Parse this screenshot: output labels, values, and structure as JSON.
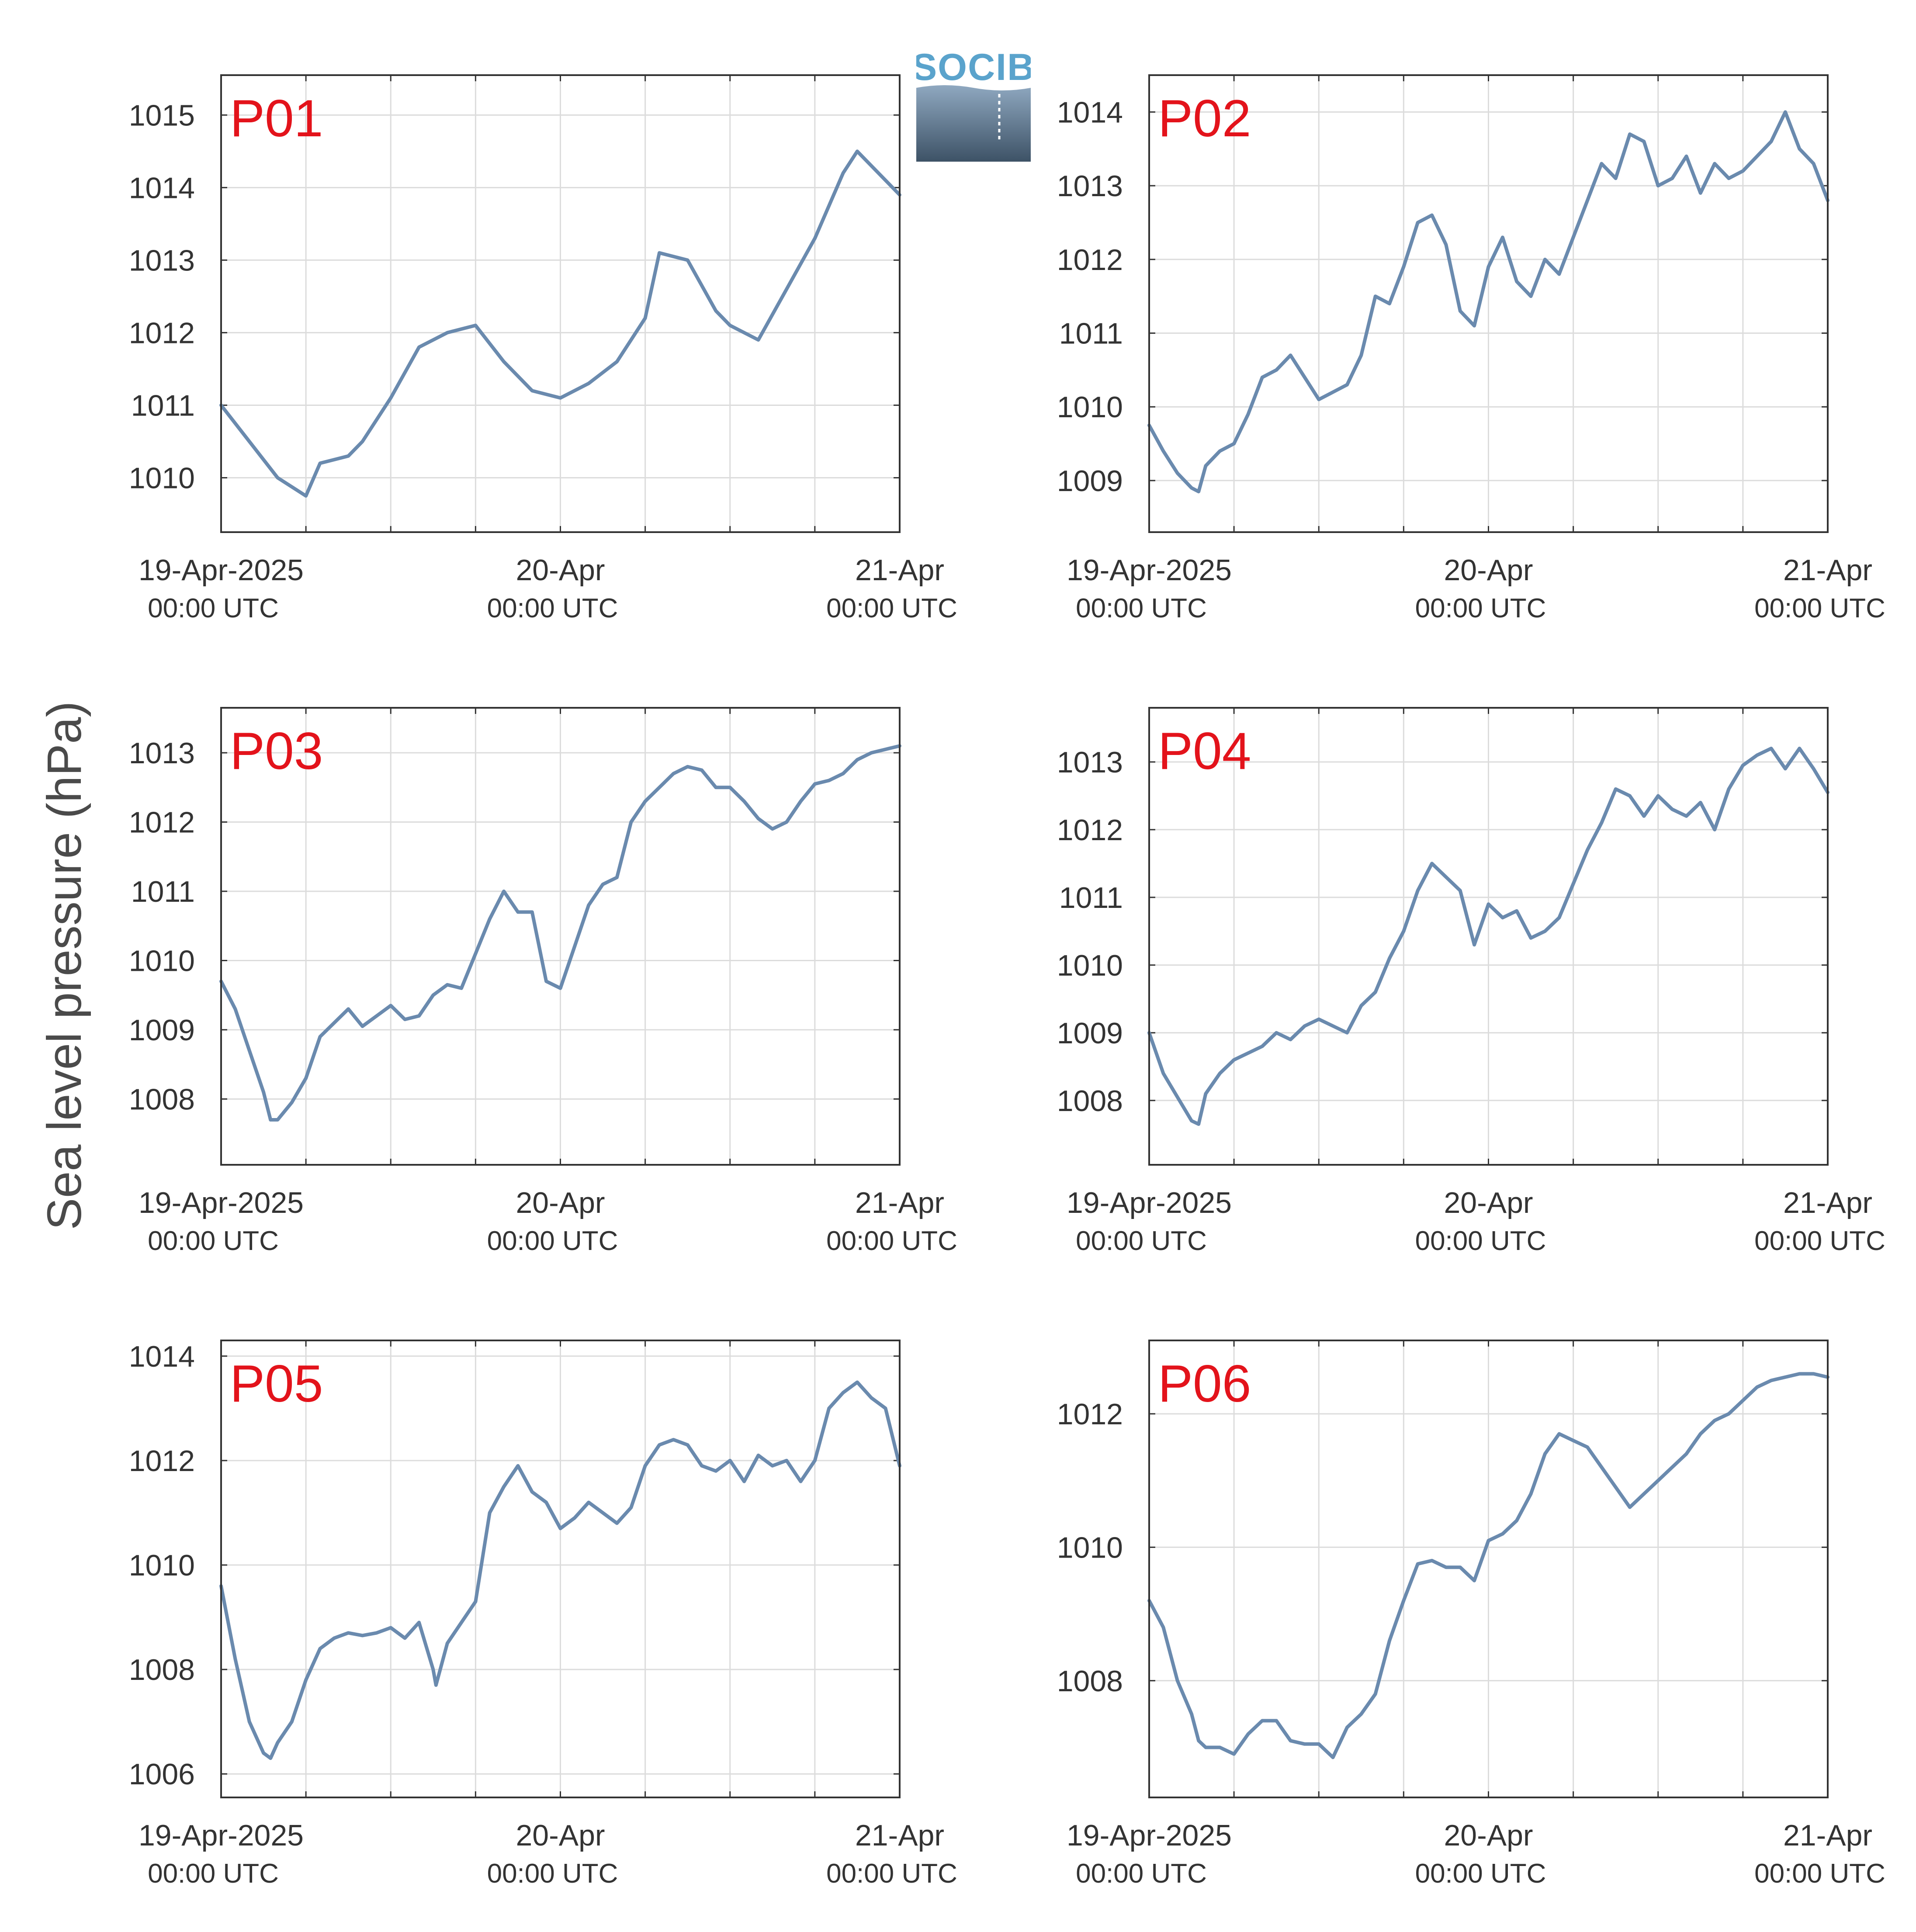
{
  "figure": {
    "ylabel": "Sea level pressure (hPa)",
    "logo_text": "SOCIB",
    "line_color": "#6a8aae",
    "label_color": "#e3131b",
    "grid_color": "#dcdcdc"
  },
  "chart_data": [
    {
      "type": "line",
      "panel": "P01",
      "ylim": [
        1009.25,
        1015.55
      ],
      "yticks": [
        1010,
        1011,
        1012,
        1013,
        1014,
        1015
      ],
      "xlim": [
        "2025-04-19 00:00",
        "2025-04-21 00:00"
      ],
      "xticks": [
        {
          "label": "19-Apr-2025",
          "sub": "00:00 UTC"
        },
        {
          "label": "20-Apr",
          "sub": "00:00 UTC"
        },
        {
          "label": "21-Apr",
          "sub": "00:00 UTC"
        }
      ],
      "grid": true,
      "series": [
        {
          "hours": [
            0,
            2,
            4,
            6,
            7,
            9,
            10,
            12,
            14,
            16,
            18,
            20,
            22,
            24,
            26,
            28,
            30,
            31,
            33,
            35,
            36,
            38,
            40,
            42,
            44,
            45,
            47,
            48
          ],
          "values": [
            1011.0,
            1010.5,
            1010.0,
            1009.75,
            1010.2,
            1010.3,
            1010.5,
            1011.1,
            1011.8,
            1012.0,
            1012.1,
            1011.6,
            1011.2,
            1011.1,
            1011.3,
            1011.6,
            1012.2,
            1013.1,
            1013.0,
            1012.3,
            1012.1,
            1011.9,
            1012.6,
            1013.3,
            1014.2,
            1014.5,
            1014.1,
            1013.9
          ]
        }
      ]
    },
    {
      "type": "line",
      "panel": "P02",
      "ylim": [
        1008.3,
        1014.5
      ],
      "yticks": [
        1009,
        1010,
        1011,
        1012,
        1013,
        1014
      ],
      "xlim": [
        "2025-04-19 00:00",
        "2025-04-21 00:00"
      ],
      "xticks": [
        {
          "label": "19-Apr-2025",
          "sub": "00:00 UTC"
        },
        {
          "label": "20-Apr",
          "sub": "00:00 UTC"
        },
        {
          "label": "21-Apr",
          "sub": "00:00 UTC"
        }
      ],
      "grid": true,
      "series": [
        {
          "hours": [
            0,
            1,
            2,
            3,
            3.5,
            4,
            5,
            6,
            7,
            8,
            9,
            10,
            11,
            12,
            13,
            14,
            15,
            16,
            17,
            18,
            19,
            20,
            21,
            22,
            23,
            24,
            25,
            26,
            27,
            28,
            29,
            30,
            31,
            32,
            33,
            34,
            35,
            36,
            37,
            38,
            39,
            40,
            41,
            42,
            43,
            44,
            45,
            46,
            47,
            48
          ],
          "values": [
            1009.75,
            1009.4,
            1009.1,
            1008.9,
            1008.85,
            1009.2,
            1009.4,
            1009.5,
            1009.9,
            1010.4,
            1010.5,
            1010.7,
            1010.4,
            1010.1,
            1010.2,
            1010.3,
            1010.7,
            1011.5,
            1011.4,
            1011.9,
            1012.5,
            1012.6,
            1012.2,
            1011.3,
            1011.1,
            1011.9,
            1012.3,
            1011.7,
            1011.5,
            1012.0,
            1011.8,
            1012.3,
            1012.8,
            1013.3,
            1013.1,
            1013.7,
            1013.6,
            1013.0,
            1013.1,
            1013.4,
            1012.9,
            1013.3,
            1013.1,
            1013.2,
            1013.4,
            1013.6,
            1014.0,
            1013.5,
            1013.3,
            1012.8
          ]
        }
      ]
    },
    {
      "type": "line",
      "panel": "P03",
      "ylim": [
        1007.05,
        1013.65
      ],
      "yticks": [
        1008,
        1009,
        1010,
        1011,
        1012,
        1013
      ],
      "xlim": [
        "2025-04-19 00:00",
        "2025-04-21 00:00"
      ],
      "xticks": [
        {
          "label": "19-Apr-2025",
          "sub": "00:00 UTC"
        },
        {
          "label": "20-Apr",
          "sub": "00:00 UTC"
        },
        {
          "label": "21-Apr",
          "sub": "00:00 UTC"
        }
      ],
      "grid": true,
      "series": [
        {
          "hours": [
            0,
            1,
            2,
            3,
            3.5,
            4,
            5,
            6,
            7,
            8,
            9,
            10,
            11,
            12,
            13,
            14,
            15,
            16,
            17,
            18,
            19,
            20,
            21,
            22,
            23,
            24,
            25,
            26,
            27,
            28,
            29,
            30,
            31,
            32,
            33,
            34,
            35,
            36,
            37,
            38,
            39,
            40,
            41,
            42,
            43,
            44,
            45,
            46,
            47,
            48
          ],
          "values": [
            1009.7,
            1009.3,
            1008.7,
            1008.1,
            1007.7,
            1007.7,
            1007.95,
            1008.3,
            1008.9,
            1009.1,
            1009.3,
            1009.05,
            1009.2,
            1009.35,
            1009.15,
            1009.2,
            1009.5,
            1009.65,
            1009.6,
            1010.1,
            1010.6,
            1011.0,
            1010.7,
            1010.7,
            1009.7,
            1009.6,
            1010.2,
            1010.8,
            1011.1,
            1011.2,
            1012.0,
            1012.3,
            1012.5,
            1012.7,
            1012.8,
            1012.75,
            1012.5,
            1012.5,
            1012.3,
            1012.05,
            1011.9,
            1012.0,
            1012.3,
            1012.55,
            1012.6,
            1012.7,
            1012.9,
            1013.0,
            1013.05,
            1013.1
          ]
        }
      ]
    },
    {
      "type": "line",
      "panel": "P04",
      "ylim": [
        1007.05,
        1013.8
      ],
      "yticks": [
        1008,
        1009,
        1010,
        1011,
        1012,
        1013
      ],
      "xlim": [
        "2025-04-19 00:00",
        "2025-04-21 00:00"
      ],
      "xticks": [
        {
          "label": "19-Apr-2025",
          "sub": "00:00 UTC"
        },
        {
          "label": "20-Apr",
          "sub": "00:00 UTC"
        },
        {
          "label": "21-Apr",
          "sub": "00:00 UTC"
        }
      ],
      "grid": true,
      "series": [
        {
          "hours": [
            0,
            1,
            2,
            3,
            3.5,
            4,
            5,
            6,
            7,
            8,
            9,
            10,
            11,
            12,
            13,
            14,
            15,
            16,
            17,
            18,
            19,
            20,
            21,
            22,
            23,
            24,
            25,
            26,
            27,
            28,
            29,
            30,
            31,
            32,
            33,
            34,
            35,
            36,
            37,
            38,
            39,
            40,
            41,
            42,
            43,
            44,
            45,
            46,
            47,
            48
          ],
          "values": [
            1009.0,
            1008.4,
            1008.05,
            1007.7,
            1007.65,
            1008.1,
            1008.4,
            1008.6,
            1008.7,
            1008.8,
            1009.0,
            1008.9,
            1009.1,
            1009.2,
            1009.1,
            1009.0,
            1009.4,
            1009.6,
            1010.1,
            1010.5,
            1011.1,
            1011.5,
            1011.3,
            1011.1,
            1010.3,
            1010.9,
            1010.7,
            1010.8,
            1010.4,
            1010.5,
            1010.7,
            1011.2,
            1011.7,
            1012.1,
            1012.6,
            1012.5,
            1012.2,
            1012.5,
            1012.3,
            1012.2,
            1012.4,
            1012.0,
            1012.6,
            1012.95,
            1013.1,
            1013.2,
            1012.9,
            1013.2,
            1012.9,
            1012.55
          ]
        }
      ]
    },
    {
      "type": "line",
      "panel": "P05",
      "ylim": [
        1005.55,
        1014.3
      ],
      "yticks": [
        1006,
        1008,
        1010,
        1012,
        1014
      ],
      "xlim": [
        "2025-04-19 00:00",
        "2025-04-21 00:00"
      ],
      "xticks": [
        {
          "label": "19-Apr-2025",
          "sub": "00:00 UTC"
        },
        {
          "label": "20-Apr",
          "sub": "00:00 UTC"
        },
        {
          "label": "21-Apr",
          "sub": "00:00 UTC"
        }
      ],
      "grid": true,
      "series": [
        {
          "hours": [
            0,
            1,
            2,
            3,
            3.5,
            4,
            5,
            6,
            7,
            8,
            9,
            10,
            11,
            12,
            13,
            14,
            15,
            15.2,
            16,
            17,
            18,
            19,
            20,
            21,
            22,
            23,
            24,
            25,
            26,
            27,
            28,
            29,
            30,
            31,
            32,
            33,
            34,
            35,
            36,
            37,
            38,
            39,
            40,
            41,
            42,
            43,
            44,
            45,
            46,
            47,
            48
          ],
          "values": [
            1009.6,
            1008.2,
            1007.0,
            1006.4,
            1006.3,
            1006.6,
            1007.0,
            1007.8,
            1008.4,
            1008.6,
            1008.7,
            1008.65,
            1008.7,
            1008.8,
            1008.6,
            1008.9,
            1008.0,
            1007.7,
            1008.5,
            1008.9,
            1009.3,
            1011.0,
            1011.5,
            1011.9,
            1011.4,
            1011.2,
            1010.7,
            1010.9,
            1011.2,
            1011.0,
            1010.8,
            1011.1,
            1011.9,
            1012.3,
            1012.4,
            1012.3,
            1011.9,
            1011.8,
            1012.0,
            1011.6,
            1012.1,
            1011.9,
            1012.0,
            1011.6,
            1012.0,
            1013.0,
            1013.3,
            1013.5,
            1013.2,
            1013.0,
            1011.9
          ]
        }
      ]
    },
    {
      "type": "line",
      "panel": "P06",
      "ylim": [
        1006.25,
        1013.1
      ],
      "yticks": [
        1008,
        1010,
        1012
      ],
      "xlim": [
        "2025-04-19 00:00",
        "2025-04-21 00:00"
      ],
      "xticks": [
        {
          "label": "19-Apr-2025",
          "sub": "00:00 UTC"
        },
        {
          "label": "20-Apr",
          "sub": "00:00 UTC"
        },
        {
          "label": "21-Apr",
          "sub": "00:00 UTC"
        }
      ],
      "grid": true,
      "series": [
        {
          "hours": [
            0,
            1,
            2,
            3,
            3.5,
            4,
            5,
            6,
            7,
            8,
            9,
            10,
            11,
            12,
            13,
            14,
            15,
            16,
            17,
            18,
            19,
            20,
            21,
            22,
            23,
            24,
            25,
            26,
            27,
            28,
            29,
            30,
            31,
            32,
            33,
            34,
            35,
            36,
            37,
            38,
            39,
            40,
            41,
            42,
            43,
            44,
            45,
            46,
            47,
            48
          ],
          "values": [
            1009.2,
            1008.8,
            1008.0,
            1007.5,
            1007.1,
            1007.0,
            1007.0,
            1006.9,
            1007.2,
            1007.4,
            1007.4,
            1007.1,
            1007.05,
            1007.05,
            1006.85,
            1007.3,
            1007.5,
            1007.8,
            1008.6,
            1009.2,
            1009.75,
            1009.8,
            1009.7,
            1009.7,
            1009.5,
            1010.1,
            1010.2,
            1010.4,
            1010.8,
            1011.4,
            1011.7,
            1011.6,
            1011.5,
            1011.2,
            1010.9,
            1010.6,
            1010.8,
            1011.0,
            1011.2,
            1011.4,
            1011.7,
            1011.9,
            1012.0,
            1012.2,
            1012.4,
            1012.5,
            1012.55,
            1012.6,
            1012.6,
            1012.55
          ]
        }
      ]
    }
  ]
}
